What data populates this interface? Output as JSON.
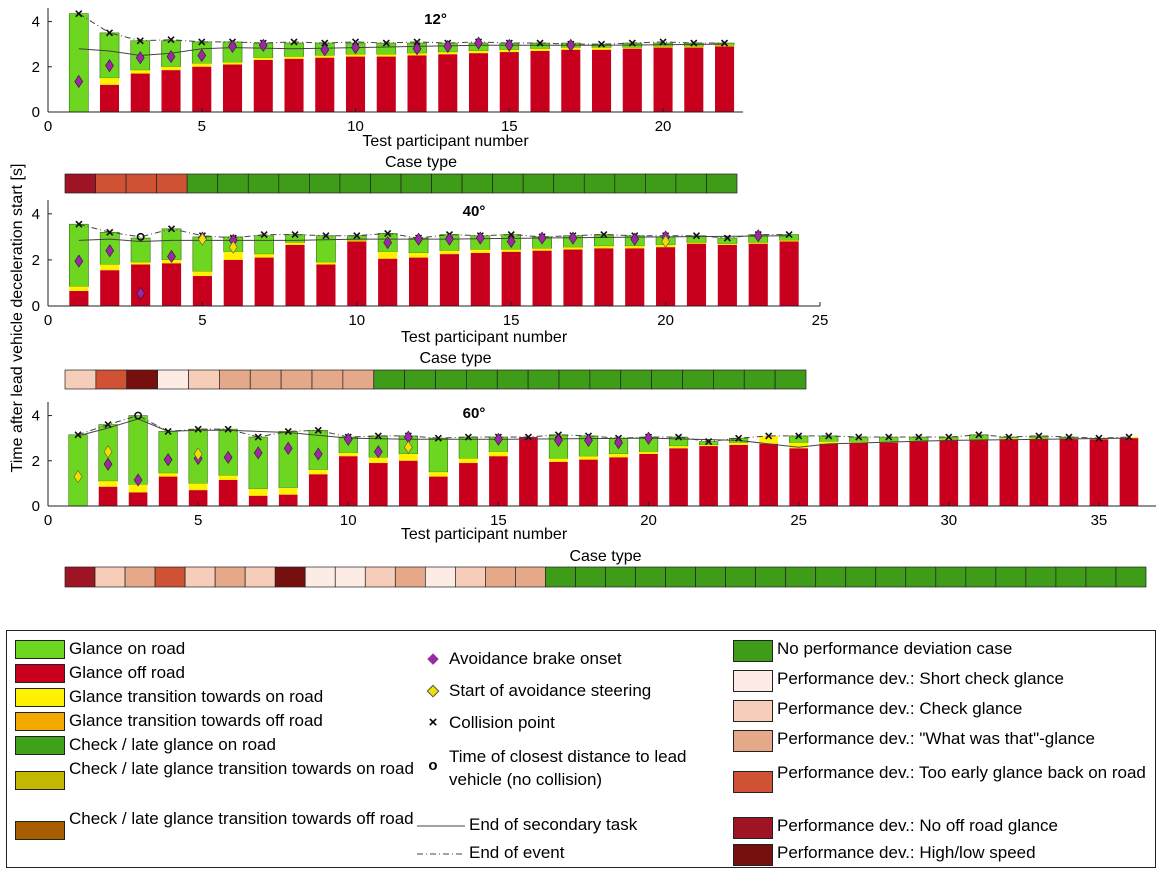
{
  "colors": {
    "on_road": "#6dd620",
    "off_road": "#c8001e",
    "trans_on": "#fff200",
    "trans_off": "#f2a900",
    "check_on": "#3fa01a",
    "check_trans_on": "#c2b800",
    "check_trans_off": "#a85d00",
    "brake": "#9a2aa0",
    "steer": "#f0e000",
    "case_none": "#3f9c18",
    "case_short_check": "#fdebe5",
    "case_check": "#f6cdb9",
    "case_what": "#e5a98a",
    "case_early": "#cf5235",
    "case_no_off": "#9e1424",
    "case_speed": "#75100f"
  },
  "ylabel": "Time after lead vehicle deceleration start [s]",
  "chart_data": [
    {
      "type": "bar",
      "title": "12°",
      "xlabel": "Test participant number",
      "case_label": "Case type",
      "xlim": [
        0,
        22.6
      ],
      "xticks": [
        0,
        5,
        10,
        15,
        20
      ],
      "ylim": [
        0,
        4.6
      ],
      "yticks": [
        0,
        2,
        4
      ],
      "x": [
        1,
        2,
        3,
        4,
        5,
        6,
        7,
        8,
        9,
        10,
        11,
        12,
        13,
        14,
        15,
        16,
        17,
        18,
        19,
        20,
        21,
        22
      ],
      "off_road": [
        0.0,
        1.2,
        1.7,
        1.85,
        2.0,
        2.1,
        2.3,
        2.35,
        2.4,
        2.45,
        2.45,
        2.5,
        2.55,
        2.6,
        2.65,
        2.7,
        2.75,
        2.75,
        2.8,
        2.85,
        2.85,
        2.9
      ],
      "trans_on": [
        0.0,
        0.3,
        0.15,
        0.15,
        0.15,
        0.1,
        0.1,
        0.1,
        0.1,
        0.1,
        0.1,
        0.1,
        0.1,
        0.1,
        0.1,
        0.1,
        0.1,
        0.1,
        0.05,
        0.05,
        0.05,
        0.05
      ],
      "total": [
        4.35,
        3.5,
        3.15,
        3.15,
        3.1,
        3.1,
        3.05,
        3.05,
        3.05,
        3.05,
        3.05,
        3.05,
        3.05,
        3.05,
        3.05,
        3.05,
        3.05,
        3.0,
        3.05,
        3.05,
        3.05,
        3.05
      ],
      "brake": [
        1.35,
        2.05,
        2.4,
        2.45,
        2.5,
        2.9,
        2.95,
        null,
        2.75,
        2.85,
        null,
        2.8,
        2.9,
        3.05,
        2.95,
        null,
        2.95,
        null,
        null,
        null,
        null,
        null
      ],
      "steer": [],
      "collision": [
        4.35,
        3.5,
        3.15,
        3.2,
        3.1,
        3.1,
        3.05,
        3.1,
        3.05,
        3.1,
        3.05,
        3.1,
        3.05,
        3.1,
        3.05,
        3.05,
        3.0,
        3.0,
        3.05,
        3.1,
        3.05,
        3.05
      ],
      "closest": [],
      "end_task": [
        [
          1,
          2.8
        ],
        [
          2,
          2.7
        ],
        [
          3,
          2.5
        ],
        [
          4,
          2.6
        ],
        [
          5,
          2.8
        ],
        [
          6,
          2.85
        ],
        [
          8,
          2.8
        ],
        [
          10,
          2.85
        ],
        [
          12,
          2.9
        ],
        [
          14,
          2.95
        ],
        [
          16,
          2.95
        ],
        [
          18,
          2.95
        ],
        [
          22,
          3.0
        ]
      ],
      "case_types": [
        "no_off",
        "early",
        "early",
        "early",
        "none",
        "none",
        "none",
        "none",
        "none",
        "none",
        "none",
        "none",
        "none",
        "none",
        "none",
        "none",
        "none",
        "none",
        "none",
        "none",
        "none",
        "none"
      ]
    },
    {
      "type": "bar",
      "title": "40°",
      "xlabel": "Test participant number",
      "case_label": "Case type",
      "xlim": [
        0,
        25
      ],
      "xticks": [
        0,
        5,
        10,
        15,
        20,
        25
      ],
      "ylim": [
        0,
        4.6
      ],
      "yticks": [
        0,
        2,
        4
      ],
      "x": [
        1,
        2,
        3,
        4,
        5,
        6,
        7,
        8,
        9,
        10,
        11,
        12,
        13,
        14,
        15,
        16,
        17,
        18,
        19,
        20,
        21,
        22,
        23,
        24
      ],
      "off_road": [
        0.65,
        1.55,
        1.8,
        1.85,
        1.3,
        2.0,
        2.1,
        2.65,
        1.8,
        2.8,
        2.05,
        2.1,
        2.25,
        2.3,
        2.35,
        2.4,
        2.45,
        2.5,
        2.5,
        2.55,
        2.7,
        2.65,
        2.7,
        2.8
      ],
      "trans_on": [
        0.2,
        0.25,
        0.1,
        0.15,
        0.2,
        0.35,
        0.15,
        0.1,
        0.1,
        0.05,
        0.3,
        0.2,
        0.15,
        0.15,
        0.1,
        0.1,
        0.1,
        0.1,
        0.1,
        0.1,
        0.05,
        0.05,
        0.05,
        0.05
      ],
      "total": [
        3.55,
        3.2,
        2.95,
        3.35,
        3.0,
        3.0,
        3.05,
        3.1,
        3.05,
        3.05,
        3.15,
        2.95,
        3.1,
        3.05,
        3.1,
        3.0,
        3.05,
        3.1,
        3.05,
        3.0,
        3.05,
        2.95,
        3.1,
        3.1
      ],
      "brake": [
        1.95,
        2.4,
        0.55,
        2.15,
        2.95,
        2.85,
        null,
        null,
        null,
        null,
        2.75,
        2.9,
        2.9,
        2.95,
        2.8,
        2.95,
        2.95,
        null,
        2.9,
        3.0,
        null,
        null,
        3.05,
        null
      ],
      "steer": [
        null,
        null,
        null,
        null,
        2.9,
        2.55,
        null,
        null,
        null,
        null,
        null,
        null,
        null,
        null,
        null,
        null,
        null,
        null,
        null,
        2.8,
        null,
        null,
        null,
        null
      ],
      "collision": [
        3.55,
        3.2,
        null,
        3.35,
        3.05,
        2.95,
        3.1,
        3.1,
        3.05,
        3.05,
        3.15,
        2.95,
        3.1,
        3.05,
        3.1,
        3.0,
        3.05,
        3.1,
        3.05,
        3.05,
        3.05,
        2.95,
        3.1,
        3.1
      ],
      "closest": [
        null,
        null,
        3.0,
        null,
        null,
        null,
        null,
        null,
        null,
        null,
        null,
        null,
        null,
        null,
        null,
        null,
        null,
        null,
        null,
        null,
        null,
        null,
        null,
        null
      ],
      "end_task": [
        [
          1,
          2.85
        ],
        [
          2,
          2.9
        ],
        [
          3,
          2.8
        ],
        [
          4,
          2.85
        ],
        [
          6,
          2.85
        ],
        [
          8,
          2.85
        ],
        [
          10,
          2.9
        ],
        [
          13,
          2.9
        ],
        [
          16,
          2.95
        ],
        [
          20,
          3.0
        ],
        [
          24,
          3.05
        ]
      ],
      "case_types": [
        "check",
        "early",
        "speed",
        "short_check",
        "check",
        "what",
        "what",
        "what",
        "what",
        "what",
        "none",
        "none",
        "none",
        "none",
        "none",
        "none",
        "none",
        "none",
        "none",
        "none",
        "none",
        "none",
        "none",
        "none"
      ]
    },
    {
      "type": "bar",
      "title": "60°",
      "xlabel": "Test participant number",
      "case_label": "Case type",
      "xlim": [
        0,
        36.9
      ],
      "xticks": [
        0,
        5,
        10,
        15,
        20,
        25,
        30,
        35
      ],
      "ylim": [
        0,
        4.6
      ],
      "yticks": [
        0,
        2,
        4
      ],
      "x": [
        1,
        2,
        3,
        4,
        5,
        6,
        7,
        8,
        9,
        10,
        11,
        12,
        13,
        14,
        15,
        16,
        17,
        18,
        19,
        20,
        21,
        22,
        23,
        24,
        25,
        26,
        27,
        28,
        29,
        30,
        31,
        32,
        33,
        34,
        35,
        36
      ],
      "off_road": [
        0.0,
        0.85,
        0.6,
        1.3,
        0.7,
        1.15,
        0.45,
        0.5,
        1.4,
        2.2,
        1.9,
        2.0,
        1.3,
        1.9,
        2.2,
        3.05,
        1.95,
        2.05,
        2.15,
        2.3,
        2.55,
        2.65,
        2.7,
        2.75,
        2.55,
        2.75,
        2.8,
        2.8,
        2.85,
        2.9,
        2.9,
        2.95,
        2.95,
        2.95,
        2.95,
        3.0
      ],
      "trans_on": [
        0.0,
        0.25,
        0.35,
        0.15,
        0.3,
        0.2,
        0.3,
        0.3,
        0.2,
        0.15,
        0.25,
        0.3,
        0.2,
        0.2,
        0.2,
        0.0,
        0.15,
        0.15,
        0.15,
        0.1,
        0.1,
        0.05,
        0.1,
        0.35,
        0.25,
        0.1,
        0.05,
        0.05,
        0.05,
        0.05,
        0.05,
        0.05,
        0.05,
        0.05,
        0.05,
        0.05
      ],
      "total": [
        3.15,
        3.6,
        4.0,
        3.3,
        3.4,
        3.4,
        3.05,
        3.3,
        3.35,
        3.05,
        3.1,
        3.1,
        3.0,
        3.05,
        3.05,
        3.05,
        3.15,
        3.1,
        3.0,
        3.05,
        3.05,
        2.85,
        3.0,
        3.1,
        3.1,
        3.1,
        3.05,
        3.05,
        3.05,
        3.05,
        3.15,
        3.05,
        3.1,
        3.05,
        3.0,
        3.05
      ],
      "brake": [
        null,
        1.85,
        1.15,
        2.05,
        2.1,
        2.15,
        2.35,
        2.55,
        2.3,
        2.95,
        2.4,
        3.05,
        null,
        null,
        2.95,
        null,
        2.9,
        2.9,
        2.8,
        3.0,
        null,
        null,
        null,
        null,
        null,
        null,
        null,
        null,
        null,
        null,
        null,
        null,
        null,
        null,
        null,
        null
      ],
      "steer": [
        1.3,
        2.4,
        null,
        null,
        2.3,
        null,
        null,
        null,
        null,
        null,
        null,
        2.6,
        null,
        null,
        null,
        null,
        null,
        null,
        null,
        null,
        null,
        null,
        null,
        null,
        null,
        null,
        null,
        null,
        null,
        null,
        null,
        null,
        null,
        null,
        null,
        null
      ],
      "collision": [
        3.15,
        3.6,
        null,
        3.3,
        3.4,
        3.4,
        3.05,
        3.3,
        3.35,
        3.05,
        3.1,
        3.1,
        3.0,
        3.05,
        3.05,
        3.05,
        3.15,
        3.1,
        3.0,
        3.05,
        3.05,
        2.85,
        3.0,
        3.1,
        3.1,
        3.1,
        3.05,
        3.05,
        3.05,
        3.05,
        3.15,
        3.05,
        3.1,
        3.05,
        3.0,
        3.05
      ],
      "closest": [
        null,
        null,
        4.0,
        null,
        null,
        null,
        null,
        null,
        null,
        null,
        null,
        null,
        null,
        null,
        null,
        null,
        null,
        null,
        null,
        null,
        null,
        null,
        null,
        null,
        null,
        null,
        null,
        null,
        null,
        null,
        null,
        null,
        null,
        null,
        null,
        null
      ],
      "end_task": [
        [
          1,
          3.1
        ],
        [
          2,
          3.45
        ],
        [
          3,
          3.85
        ],
        [
          4,
          3.3
        ],
        [
          5,
          3.35
        ],
        [
          6,
          3.35
        ],
        [
          8,
          3.25
        ],
        [
          10,
          3.0
        ],
        [
          12,
          2.95
        ],
        [
          15,
          2.95
        ],
        [
          20,
          3.0
        ],
        [
          23,
          2.9
        ],
        [
          25,
          2.6
        ],
        [
          26,
          2.75
        ],
        [
          30,
          2.9
        ],
        [
          36,
          3.0
        ]
      ],
      "case_types": [
        "no_off",
        "check",
        "what",
        "early",
        "check",
        "what",
        "check",
        "speed",
        "short_check",
        "short_check",
        "check",
        "what",
        "short_check",
        "check",
        "what",
        "what",
        "none",
        "none",
        "none",
        "none",
        "none",
        "none",
        "none",
        "none",
        "none",
        "none",
        "none",
        "none",
        "none",
        "none",
        "none",
        "none",
        "none",
        "none",
        "none",
        "none"
      ]
    }
  ],
  "legend": {
    "col1": [
      {
        "key": "on_road",
        "label": "Glance on road"
      },
      {
        "key": "off_road",
        "label": "Glance off road"
      },
      {
        "key": "trans_on",
        "label": "Glance transition towards on road"
      },
      {
        "key": "trans_off",
        "label": "Glance transition towards off road"
      },
      {
        "key": "check_on",
        "label": "Check / late glance on road"
      },
      {
        "key": "check_trans_on",
        "label": "Check / late glance transition towards on road"
      },
      {
        "key": "check_trans_off",
        "label": "Check / late glance transition towards off road"
      }
    ],
    "col2": {
      "brake": "Avoidance brake onset",
      "steer": "Start of avoidance steering",
      "collision": "Collision point",
      "closest": "Time of closest distance to lead vehicle (no collision)",
      "end_task": "End of secondary task",
      "end_event": "End of event"
    },
    "col3": [
      {
        "key": "case_none",
        "label": "No performance deviation case"
      },
      {
        "key": "case_short_check",
        "label": "Performance dev.: Short check glance"
      },
      {
        "key": "case_check",
        "label": "Performance dev.: Check glance"
      },
      {
        "key": "case_what",
        "label": "Performance dev.: \"What was that\"-glance"
      },
      {
        "key": "case_early",
        "label": "Performance dev.: Too early glance back on road"
      },
      {
        "key": "case_no_off",
        "label": "Performance dev.: No off road glance"
      },
      {
        "key": "case_speed",
        "label": "Performance dev.: High/low speed"
      }
    ]
  }
}
